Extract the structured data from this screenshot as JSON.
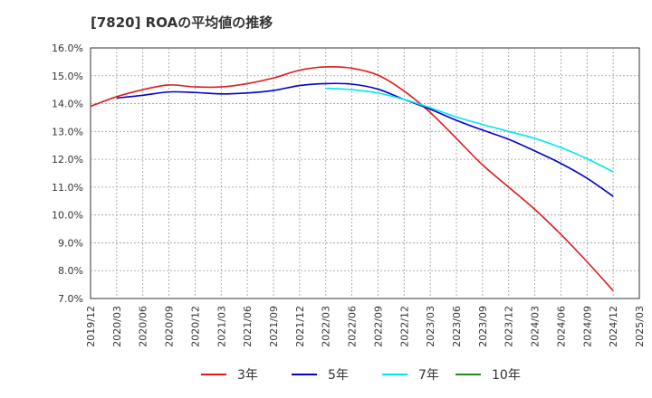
{
  "chart_data": {
    "type": "line",
    "title": "[7820]  ROAの平均値の推移",
    "xlabel": "",
    "ylabel": "",
    "ylim": [
      7.0,
      16.0
    ],
    "y_tick_labels": [
      "7.0%",
      "8.0%",
      "9.0%",
      "10.0%",
      "11.0%",
      "12.0%",
      "13.0%",
      "14.0%",
      "15.0%",
      "16.0%"
    ],
    "x_tick_labels": [
      "2019/12",
      "2020/03",
      "2020/06",
      "2020/09",
      "2020/12",
      "2021/03",
      "2021/06",
      "2021/09",
      "2021/12",
      "2022/03",
      "2022/06",
      "2022/09",
      "2022/12",
      "2023/03",
      "2023/06",
      "2023/09",
      "2023/12",
      "2024/03",
      "2024/06",
      "2024/09",
      "2024/12",
      "2025/03"
    ],
    "grid": true,
    "legend_position": "bottom",
    "series": [
      {
        "name": "3年",
        "color": "#e0191b",
        "points": [
          [
            "2019/12",
            13.9
          ],
          [
            "2020/03",
            14.25
          ],
          [
            "2020/06",
            14.5
          ],
          [
            "2020/09",
            14.67
          ],
          [
            "2020/12",
            14.6
          ],
          [
            "2021/03",
            14.6
          ],
          [
            "2021/06",
            14.72
          ],
          [
            "2021/09",
            14.92
          ],
          [
            "2021/12",
            15.2
          ],
          [
            "2022/03",
            15.32
          ],
          [
            "2022/06",
            15.27
          ],
          [
            "2022/09",
            15.02
          ],
          [
            "2022/12",
            14.45
          ],
          [
            "2023/03",
            13.68
          ],
          [
            "2023/06",
            12.75
          ],
          [
            "2023/09",
            11.8
          ],
          [
            "2023/12",
            11.0
          ],
          [
            "2024/03",
            10.2
          ],
          [
            "2024/06",
            9.3
          ],
          [
            "2024/09",
            8.32
          ],
          [
            "2024/12",
            7.28
          ]
        ]
      },
      {
        "name": "5年",
        "color": "#0000cc",
        "points": [
          [
            "2020/03",
            14.2
          ],
          [
            "2020/06",
            14.3
          ],
          [
            "2020/09",
            14.42
          ],
          [
            "2020/12",
            14.4
          ],
          [
            "2021/03",
            14.35
          ],
          [
            "2021/06",
            14.38
          ],
          [
            "2021/09",
            14.47
          ],
          [
            "2021/12",
            14.65
          ],
          [
            "2022/03",
            14.72
          ],
          [
            "2022/06",
            14.7
          ],
          [
            "2022/09",
            14.52
          ],
          [
            "2022/12",
            14.15
          ],
          [
            "2023/03",
            13.8
          ],
          [
            "2023/06",
            13.4
          ],
          [
            "2023/09",
            13.05
          ],
          [
            "2023/12",
            12.72
          ],
          [
            "2024/03",
            12.3
          ],
          [
            "2024/06",
            11.85
          ],
          [
            "2024/09",
            11.32
          ],
          [
            "2024/12",
            10.67
          ]
        ]
      },
      {
        "name": "7年",
        "color": "#00e5ee",
        "points": [
          [
            "2022/03",
            14.55
          ],
          [
            "2022/06",
            14.5
          ],
          [
            "2022/09",
            14.38
          ],
          [
            "2022/12",
            14.15
          ],
          [
            "2023/03",
            13.85
          ],
          [
            "2023/06",
            13.52
          ],
          [
            "2023/09",
            13.25
          ],
          [
            "2023/12",
            13.0
          ],
          [
            "2024/03",
            12.75
          ],
          [
            "2024/06",
            12.42
          ],
          [
            "2024/09",
            12.02
          ],
          [
            "2024/12",
            11.55
          ]
        ]
      },
      {
        "name": "10年",
        "color": "#228b22",
        "points": []
      }
    ]
  }
}
